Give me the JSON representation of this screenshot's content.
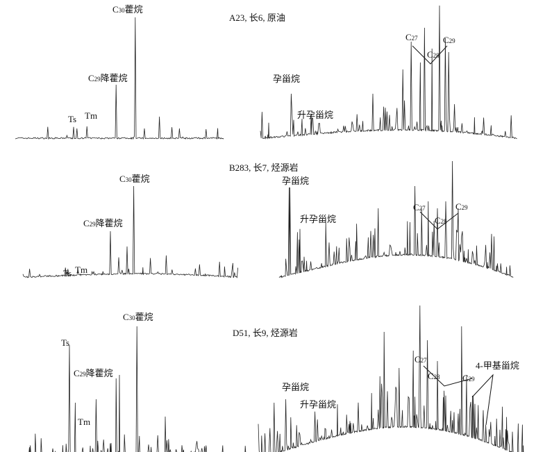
{
  "panels": [
    {
      "title": "A23, 长6, 原油",
      "left_labels": [
        {
          "base": "C",
          "sub": "30",
          "rest": "藿烷"
        },
        {
          "base": "C",
          "sub": "29",
          "rest": "降藿烷"
        },
        {
          "base": "Ts",
          "sub": "",
          "rest": ""
        },
        {
          "base": "Tm",
          "sub": "",
          "rest": ""
        }
      ],
      "right_labels": [
        {
          "base": "孕甾烷",
          "sub": "",
          "rest": ""
        },
        {
          "base": "升孕甾烷",
          "sub": "",
          "rest": ""
        },
        {
          "base": "C",
          "sub": "27",
          "rest": ""
        },
        {
          "base": "C",
          "sub": "28",
          "rest": ""
        },
        {
          "base": "C",
          "sub": "29",
          "rest": ""
        }
      ]
    },
    {
      "title": "B283, 长7, 烃源岩",
      "left_labels": [
        {
          "base": "C",
          "sub": "30",
          "rest": "藿烷"
        },
        {
          "base": "C",
          "sub": "29",
          "rest": "降藿烷"
        },
        {
          "base": "Ts",
          "sub": "",
          "rest": ""
        },
        {
          "base": "Tm",
          "sub": "",
          "rest": ""
        }
      ],
      "right_labels": [
        {
          "base": "孕甾烷",
          "sub": "",
          "rest": ""
        },
        {
          "base": "升孕甾烷",
          "sub": "",
          "rest": ""
        },
        {
          "base": "C",
          "sub": "27",
          "rest": ""
        },
        {
          "base": "C",
          "sub": "28",
          "rest": ""
        },
        {
          "base": "C",
          "sub": "29",
          "rest": ""
        }
      ]
    },
    {
      "title": "D51, 长9, 烃源岩",
      "left_labels": [
        {
          "base": "C",
          "sub": "30",
          "rest": "藿烷"
        },
        {
          "base": "C",
          "sub": "29",
          "rest": "降藿烷"
        },
        {
          "base": "Ts",
          "sub": "",
          "rest": ""
        },
        {
          "base": "Tm",
          "sub": "",
          "rest": ""
        }
      ],
      "right_labels": [
        {
          "base": "孕甾烷",
          "sub": "",
          "rest": ""
        },
        {
          "base": "升孕甾烷",
          "sub": "",
          "rest": ""
        },
        {
          "base": "C",
          "sub": "27",
          "rest": ""
        },
        {
          "base": "C",
          "sub": "28",
          "rest": ""
        },
        {
          "base": "C",
          "sub": "29",
          "rest": ""
        },
        {
          "base": "4-甲基甾烷",
          "sub": "",
          "rest": ""
        }
      ]
    }
  ]
}
